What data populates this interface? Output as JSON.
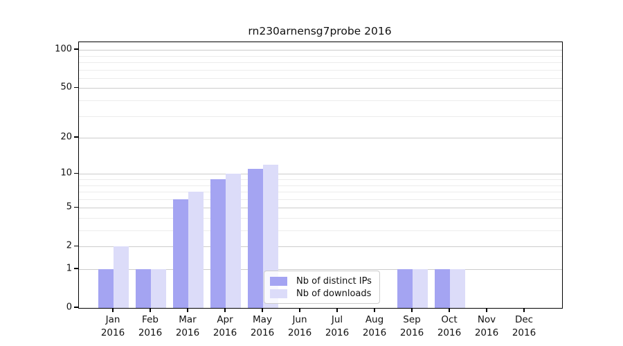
{
  "chart_data": {
    "type": "bar",
    "title": "rn230arnensg7probe 2016",
    "categories": [
      "Jan",
      "Feb",
      "Mar",
      "Apr",
      "May",
      "Jun",
      "Jul",
      "Aug",
      "Sep",
      "Oct",
      "Nov",
      "Dec"
    ],
    "category_year": "2016",
    "series": [
      {
        "name": "Nb of distinct IPs",
        "color": "#a4a4f2",
        "values": [
          1,
          1,
          6,
          9,
          11,
          0,
          0,
          0,
          1,
          1,
          0,
          0
        ]
      },
      {
        "name": "Nb of downloads",
        "color": "#dcdcf9",
        "values": [
          2,
          1,
          7,
          10,
          12,
          0,
          0,
          0,
          1,
          1,
          0,
          0
        ]
      }
    ],
    "y_axis": {
      "scale": "log10(value+1)",
      "major_ticks": [
        0,
        1,
        2,
        5,
        10,
        20,
        50,
        100
      ],
      "tick_labels": [
        "0",
        "1",
        "2",
        "5",
        "10",
        "20",
        "50",
        "100"
      ],
      "minor_gridlines": [
        3,
        4,
        6,
        7,
        8,
        9,
        30,
        40,
        60,
        70,
        80,
        90
      ],
      "ylim": [
        0,
        115
      ],
      "grid": true
    },
    "legend": {
      "position": "lower center"
    },
    "colors": {
      "major_grid": "#cccccc",
      "minor_grid": "#ececec",
      "axis": "#000000",
      "background": "#ffffff"
    }
  }
}
